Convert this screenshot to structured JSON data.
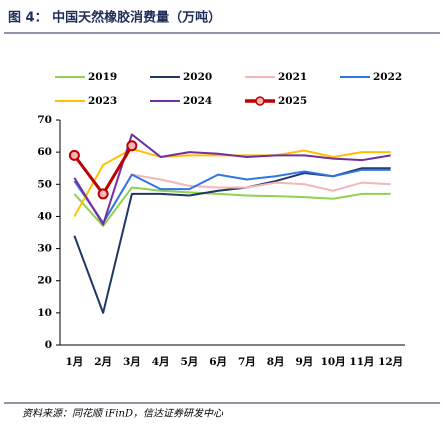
{
  "chart_data": {
    "type": "line",
    "title": "图 4：  中国天然橡胶消费量（万吨）",
    "source": "资料来源：同花顺 iFinD，信达证券研发中心",
    "categories": [
      "1月",
      "2月",
      "3月",
      "4月",
      "5月",
      "6月",
      "7月",
      "8月",
      "9月",
      "10月",
      "11月",
      "12月"
    ],
    "ylim": [
      0,
      70
    ],
    "yticks": [
      0,
      10,
      20,
      30,
      40,
      50,
      60,
      70
    ],
    "series": [
      {
        "name": "2019",
        "color": "#92d050",
        "values": [
          47,
          37,
          49,
          48,
          47.5,
          47,
          46.5,
          46.3,
          46,
          45.5,
          47,
          47
        ]
      },
      {
        "name": "2020",
        "color": "#1f3864",
        "values": [
          34,
          10,
          47,
          47,
          46.5,
          48,
          49,
          51,
          53.5,
          52.5,
          55,
          55
        ]
      },
      {
        "name": "2021",
        "color": "#f4b6b6",
        "values": [
          52,
          38,
          53,
          51.5,
          49.5,
          49,
          49,
          50.5,
          50,
          48,
          50.5,
          50
        ]
      },
      {
        "name": "2022",
        "color": "#2e75e6",
        "values": [
          51,
          38,
          53,
          48.5,
          48.5,
          53,
          51.5,
          52.5,
          54,
          52.5,
          54.5,
          54.5
        ]
      },
      {
        "name": "2023",
        "color": "#ffc000",
        "values": [
          40,
          56,
          61,
          58.5,
          59,
          59,
          59,
          59,
          60.5,
          58.5,
          60,
          60
        ]
      },
      {
        "name": "2024",
        "color": "#7030a0",
        "values": [
          52,
          37.5,
          65.5,
          58.5,
          60,
          59.5,
          58.5,
          59,
          59,
          58,
          57.5,
          59
        ]
      },
      {
        "name": "2025",
        "color": "#c00000",
        "marker": true,
        "values": [
          59,
          47,
          62,
          null,
          null,
          null,
          null,
          null,
          null,
          null,
          null,
          null
        ]
      }
    ]
  }
}
